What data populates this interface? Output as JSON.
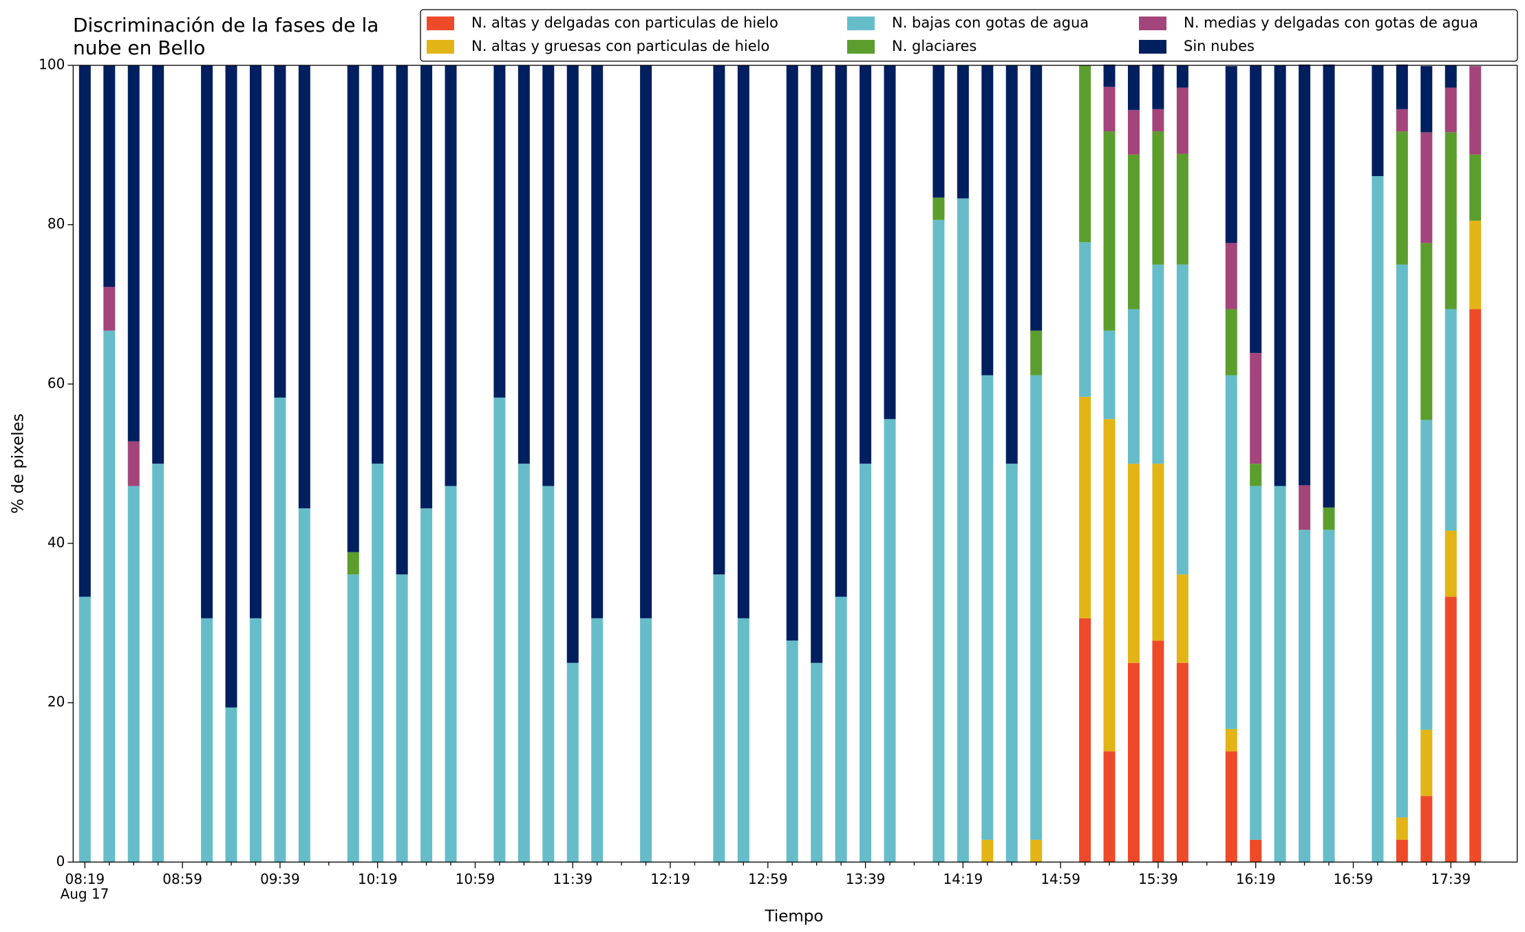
{
  "chart_data": {
    "type": "stacked_bar",
    "title": "Discriminación de la fases de la nube en Bello",
    "x_label": "Tiempo",
    "y_label": "% de pixeles",
    "date_label": "Aug 17",
    "categories": [
      "08:19",
      null,
      null,
      null,
      "08:59",
      null,
      null,
      null,
      "09:39",
      null,
      null,
      null,
      "10:19",
      null,
      null,
      null,
      "10:59",
      null,
      null,
      null,
      "11:39",
      null,
      null,
      null,
      "12:19",
      null,
      null,
      null,
      "12:59",
      null,
      null,
      null,
      "13:39",
      null,
      null,
      null,
      "14:19",
      null,
      null,
      null,
      "14:59",
      null,
      null,
      null,
      "15:39",
      null,
      null,
      null,
      "16:19",
      null,
      null,
      null,
      "16:59",
      null,
      null,
      null,
      "17:39",
      null
    ],
    "series": [
      {
        "name": "N. altas y delgadas con particulas de hielo",
        "color": "#ee4a2a",
        "values": [
          0,
          0,
          0,
          0,
          null,
          0,
          0,
          0,
          0,
          0,
          null,
          0,
          0,
          0,
          0,
          0,
          null,
          0,
          0,
          0,
          0,
          0,
          null,
          0,
          null,
          null,
          0,
          0,
          null,
          0,
          0,
          0,
          0,
          0,
          null,
          0,
          0,
          0,
          0,
          0,
          null,
          30.6,
          13.9,
          25,
          27.8,
          25,
          null,
          13.9,
          2.8,
          0,
          0,
          0,
          null,
          0,
          2.8,
          8.3,
          33.3,
          69.4
        ]
      },
      {
        "name": "N. altas y gruesas con particulas de hielo",
        "color": "#e3b416",
        "values": [
          0,
          0,
          0,
          0,
          null,
          0,
          0,
          0,
          0,
          0,
          null,
          0,
          0,
          0,
          0,
          0,
          null,
          0,
          0,
          0,
          0,
          0,
          null,
          0,
          null,
          null,
          0,
          0,
          null,
          0,
          0,
          0,
          0,
          0,
          null,
          0,
          0,
          2.8,
          0,
          2.8,
          null,
          27.8,
          41.7,
          25,
          22.2,
          11.1,
          null,
          2.8,
          0,
          0,
          0,
          0,
          null,
          0,
          2.8,
          8.3,
          8.3,
          11.1
        ]
      },
      {
        "name": "N. bajas con gotas de agua",
        "color": "#66bdc9",
        "values": [
          33.3,
          66.7,
          47.2,
          50,
          null,
          30.6,
          19.4,
          30.6,
          58.3,
          44.4,
          null,
          36.1,
          50,
          36.1,
          44.4,
          47.2,
          null,
          58.3,
          50,
          47.2,
          25,
          30.6,
          null,
          30.6,
          null,
          null,
          36.1,
          30.6,
          null,
          27.8,
          25,
          33.3,
          50,
          55.6,
          null,
          80.6,
          83.3,
          58.3,
          50,
          58.3,
          null,
          19.4,
          11.1,
          19.4,
          25,
          38.9,
          null,
          44.4,
          44.4,
          47.2,
          41.7,
          41.7,
          null,
          86.1,
          69.4,
          38.9,
          27.8,
          0
        ]
      },
      {
        "name": "N. glaciares",
        "color": "#5b9e2d",
        "values": [
          0,
          0,
          0,
          0,
          null,
          0,
          0,
          0,
          0,
          0,
          null,
          2.8,
          0,
          0,
          0,
          0,
          null,
          0,
          0,
          0,
          0,
          0,
          null,
          0,
          null,
          null,
          0,
          0,
          null,
          0,
          0,
          0,
          0,
          0,
          null,
          2.8,
          0,
          0,
          0,
          5.6,
          null,
          22.2,
          25,
          19.4,
          16.7,
          13.9,
          null,
          8.3,
          2.8,
          0,
          0,
          2.8,
          null,
          0,
          16.7,
          22.2,
          22.2,
          8.3
        ]
      },
      {
        "name": "N. medias y delgadas con gotas de agua",
        "color": "#a3457b",
        "values": [
          0,
          5.5,
          5.6,
          0,
          null,
          0,
          0,
          0,
          0,
          0,
          null,
          0,
          0,
          0,
          0,
          0,
          null,
          0,
          0,
          0,
          0,
          0,
          null,
          0,
          null,
          null,
          0,
          0,
          null,
          0,
          0,
          0,
          0,
          0,
          null,
          0,
          0,
          0,
          0,
          0,
          null,
          0,
          5.6,
          5.6,
          2.8,
          8.3,
          null,
          8.3,
          13.9,
          0,
          5.6,
          0,
          null,
          0,
          2.8,
          13.9,
          5.6,
          11.1
        ]
      },
      {
        "name": "Sin nubes",
        "color": "#001f5f",
        "values": [
          66.7,
          27.8,
          47.2,
          50,
          null,
          69.4,
          80.6,
          69.4,
          41.7,
          55.6,
          null,
          61.1,
          50,
          63.9,
          55.6,
          52.8,
          null,
          41.7,
          50,
          52.8,
          75,
          69.4,
          null,
          69.4,
          null,
          null,
          63.9,
          69.4,
          null,
          72.2,
          75,
          66.7,
          50,
          44.4,
          null,
          16.6,
          16.7,
          38.9,
          50,
          33.3,
          null,
          0,
          2.8,
          5.6,
          5.6,
          2.8,
          null,
          22.2,
          36.1,
          52.8,
          52.8,
          55.6,
          null,
          13.9,
          5.6,
          8.3,
          2.8,
          0
        ]
      }
    ],
    "ylim": [
      0,
      100
    ],
    "yticks": [
      0,
      20,
      40,
      60,
      80,
      100
    ],
    "grid": false,
    "legend": "upper right"
  }
}
